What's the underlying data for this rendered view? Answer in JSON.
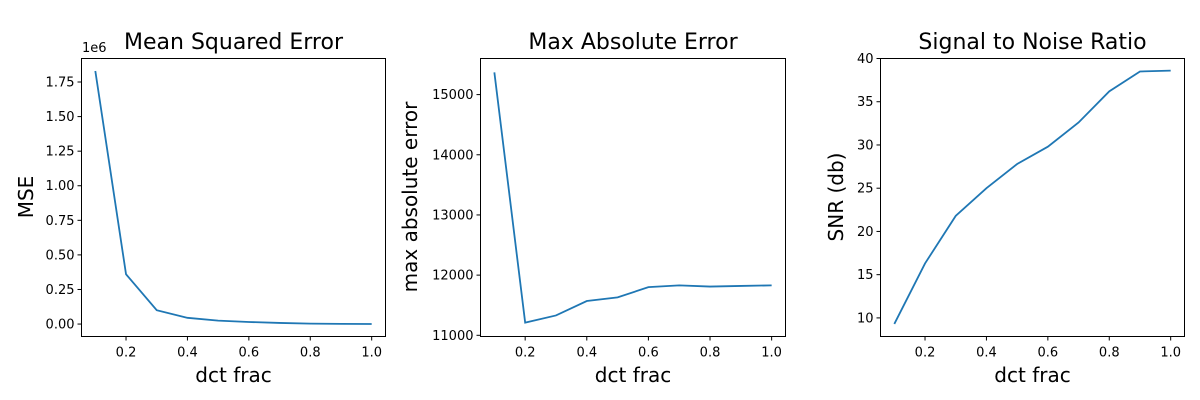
{
  "chart_data": [
    {
      "type": "line",
      "title": "Mean Squared Error",
      "xlabel": "dct frac",
      "ylabel": "MSE",
      "offset_text": "1e6",
      "x": [
        0.1,
        0.2,
        0.3,
        0.4,
        0.5,
        0.6,
        0.7,
        0.8,
        0.9,
        1.0
      ],
      "series": [
        {
          "values": [
            1830000,
            360000,
            100000,
            45000,
            25000,
            15000,
            8000,
            3000,
            1000,
            500
          ]
        }
      ],
      "xlim": [
        0.055,
        1.045
      ],
      "ylim": [
        -90000,
        1920000
      ],
      "xticks": [
        0.2,
        0.4,
        0.6,
        0.8,
        1.0
      ],
      "xtick_labels": [
        "0.2",
        "0.4",
        "0.6",
        "0.8",
        "1.0"
      ],
      "yticks": [
        0,
        250000,
        500000,
        750000,
        1000000,
        1250000,
        1500000,
        1750000
      ],
      "ytick_labels": [
        "0.00",
        "0.25",
        "0.50",
        "0.75",
        "1.00",
        "1.25",
        "1.50",
        "1.75"
      ],
      "grid": false,
      "color": "#1f77b4"
    },
    {
      "type": "line",
      "title": "Max Absolute Error",
      "xlabel": "dct frac",
      "ylabel": "max absolute error",
      "x": [
        0.1,
        0.2,
        0.3,
        0.4,
        0.5,
        0.6,
        0.7,
        0.8,
        0.9,
        1.0
      ],
      "series": [
        {
          "values": [
            15370,
            11210,
            11330,
            11570,
            11630,
            11800,
            11830,
            11810,
            11820,
            11830
          ]
        }
      ],
      "xlim": [
        0.055,
        1.045
      ],
      "ylim": [
        10980,
        15600
      ],
      "xticks": [
        0.2,
        0.4,
        0.6,
        0.8,
        1.0
      ],
      "xtick_labels": [
        "0.2",
        "0.4",
        "0.6",
        "0.8",
        "1.0"
      ],
      "yticks": [
        11000,
        12000,
        13000,
        14000,
        15000
      ],
      "ytick_labels": [
        "11000",
        "12000",
        "13000",
        "14000",
        "15000"
      ],
      "grid": false,
      "color": "#1f77b4"
    },
    {
      "type": "line",
      "title": "Signal to Noise Ratio",
      "xlabel": "dct frac",
      "ylabel": "SNR (db)",
      "x": [
        0.1,
        0.2,
        0.3,
        0.4,
        0.5,
        0.6,
        0.7,
        0.8,
        0.9,
        1.0
      ],
      "series": [
        {
          "values": [
            9.3,
            16.3,
            21.8,
            25.0,
            27.8,
            29.8,
            32.6,
            36.2,
            38.5,
            38.6
          ]
        }
      ],
      "xlim": [
        0.055,
        1.045
      ],
      "ylim": [
        7.85,
        40.0
      ],
      "xticks": [
        0.2,
        0.4,
        0.6,
        0.8,
        1.0
      ],
      "xtick_labels": [
        "0.2",
        "0.4",
        "0.6",
        "0.8",
        "1.0"
      ],
      "yticks": [
        10,
        15,
        20,
        25,
        30,
        35,
        40
      ],
      "ytick_labels": [
        "10",
        "15",
        "20",
        "25",
        "30",
        "35",
        "40"
      ],
      "grid": false,
      "color": "#1f77b4"
    }
  ]
}
